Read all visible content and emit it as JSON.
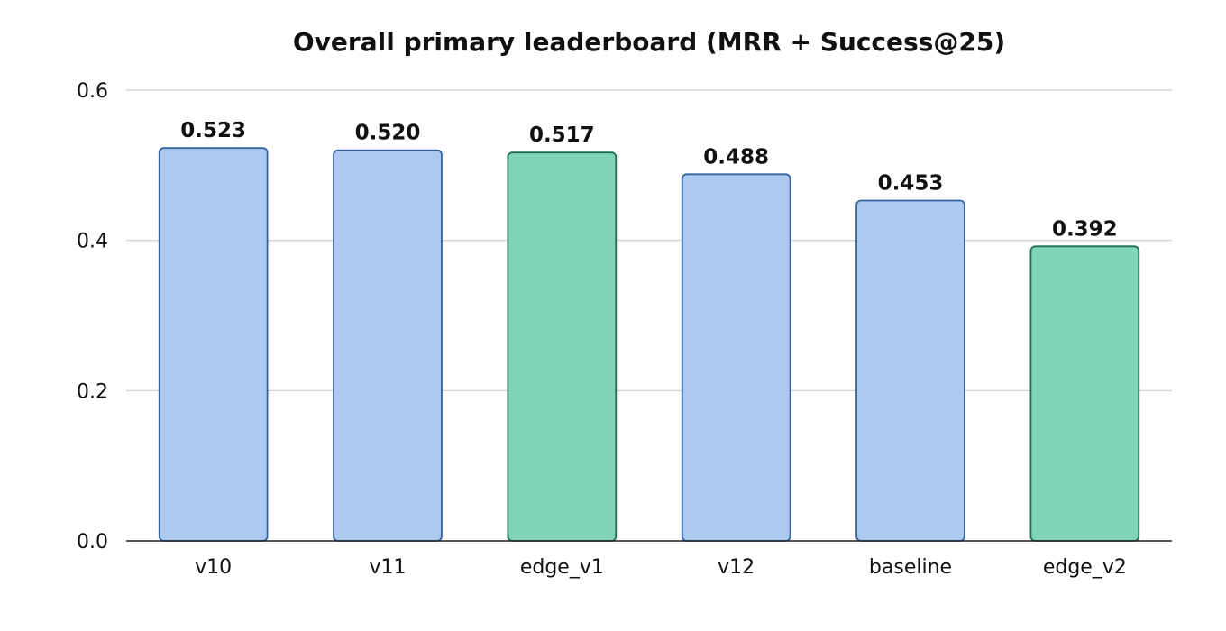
{
  "chart_data": {
    "type": "bar",
    "title": "Overall primary leaderboard (MRR + Success@25)",
    "xlabel": "",
    "ylabel": "",
    "categories": [
      "v10",
      "v11",
      "edge_v1",
      "v12",
      "baseline",
      "edge_v2"
    ],
    "values": [
      0.523,
      0.52,
      0.517,
      0.488,
      0.453,
      0.392
    ],
    "value_labels": [
      "0.523",
      "0.520",
      "0.517",
      "0.488",
      "0.453",
      "0.392"
    ],
    "ylim": [
      0,
      0.6
    ],
    "yticks": [
      0.0,
      0.2,
      0.4,
      0.6
    ],
    "ytick_labels": [
      "0.0",
      "0.2",
      "0.4",
      "0.6"
    ],
    "grid": true,
    "legend": "none",
    "bar_groups": [
      "main",
      "main",
      "edge",
      "main",
      "main",
      "edge"
    ],
    "colors": {
      "main": {
        "fill": "#aec9ee",
        "stroke": "#2f62a3"
      },
      "edge": {
        "fill": "#80d4b9",
        "stroke": "#1f6d55"
      }
    }
  }
}
